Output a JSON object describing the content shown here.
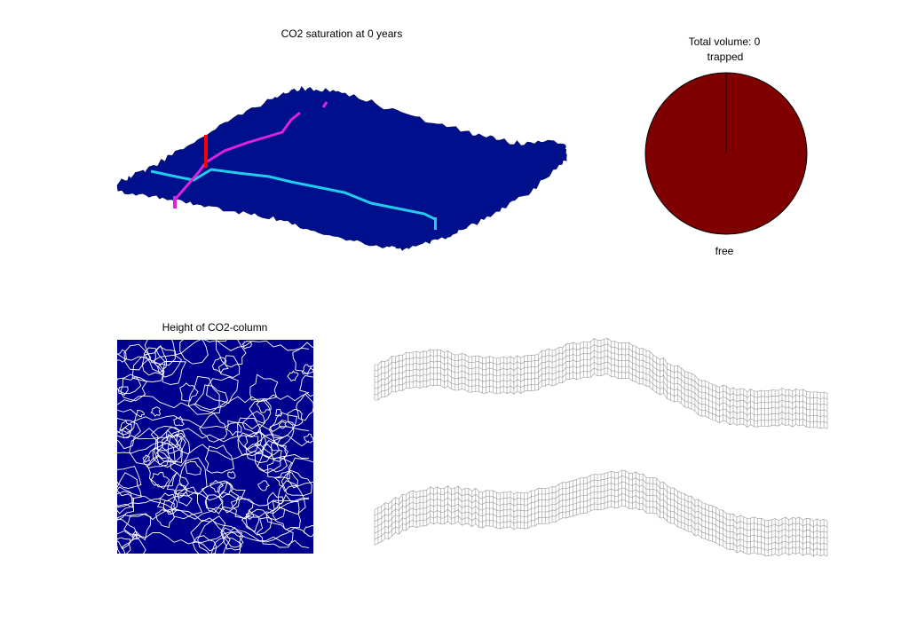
{
  "figure": {
    "surface_title": "CO2 saturation at 0 years",
    "pie_title": "Total volume: 0",
    "contour_title": "Height of CO2-column"
  },
  "chart_data": [
    {
      "type": "surface",
      "title": "CO2 saturation at 0 years",
      "grid": false,
      "colors": {
        "surface": "#000f8c",
        "well": "#ff0000",
        "river_cyan": "#22ccee",
        "river_magenta": "#dd22dd"
      },
      "features": [
        "injection-well",
        "cyan-pathway",
        "magenta-pathway"
      ]
    },
    {
      "type": "pie",
      "title": "Total volume: 0",
      "slices": [
        {
          "label": "trapped",
          "value": 0,
          "color": "#800000"
        },
        {
          "label": "free",
          "value": 1,
          "color": "#800000"
        }
      ]
    },
    {
      "type": "heatmap",
      "title": "Height of CO2-column",
      "background_color": "#00008f",
      "contour_color": "#ffffff"
    },
    {
      "type": "surface",
      "title": "",
      "style": "mesh",
      "mesh_color": "#999999",
      "panels": 2
    }
  ]
}
